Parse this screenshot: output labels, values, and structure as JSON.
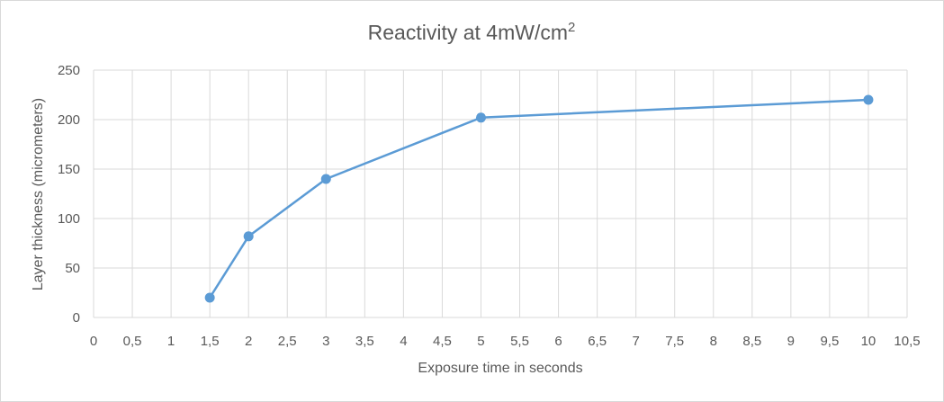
{
  "chart_data": {
    "type": "scatter",
    "title": "Reactivity at 4mW/cm",
    "title_superscript": "2",
    "xlabel": "Exposure time in seconds",
    "ylabel": "Layer thickness (micrometers)",
    "xlim": [
      0,
      10.5
    ],
    "ylim": [
      0,
      250
    ],
    "x_ticks": [
      "0",
      "0,5",
      "1",
      "1,5",
      "2",
      "2,5",
      "3",
      "3,5",
      "4",
      "4,5",
      "5",
      "5,5",
      "6",
      "6,5",
      "7",
      "7,5",
      "8",
      "8,5",
      "9",
      "9,5",
      "10",
      "10,5"
    ],
    "y_ticks": [
      "0",
      "50",
      "100",
      "150",
      "200",
      "250"
    ],
    "grid": true,
    "legend": "none",
    "series": [
      {
        "color": "#5b9bd5",
        "x": [
          1.5,
          2,
          3,
          5,
          10
        ],
        "y": [
          20,
          82,
          140,
          202,
          220
        ]
      }
    ]
  }
}
